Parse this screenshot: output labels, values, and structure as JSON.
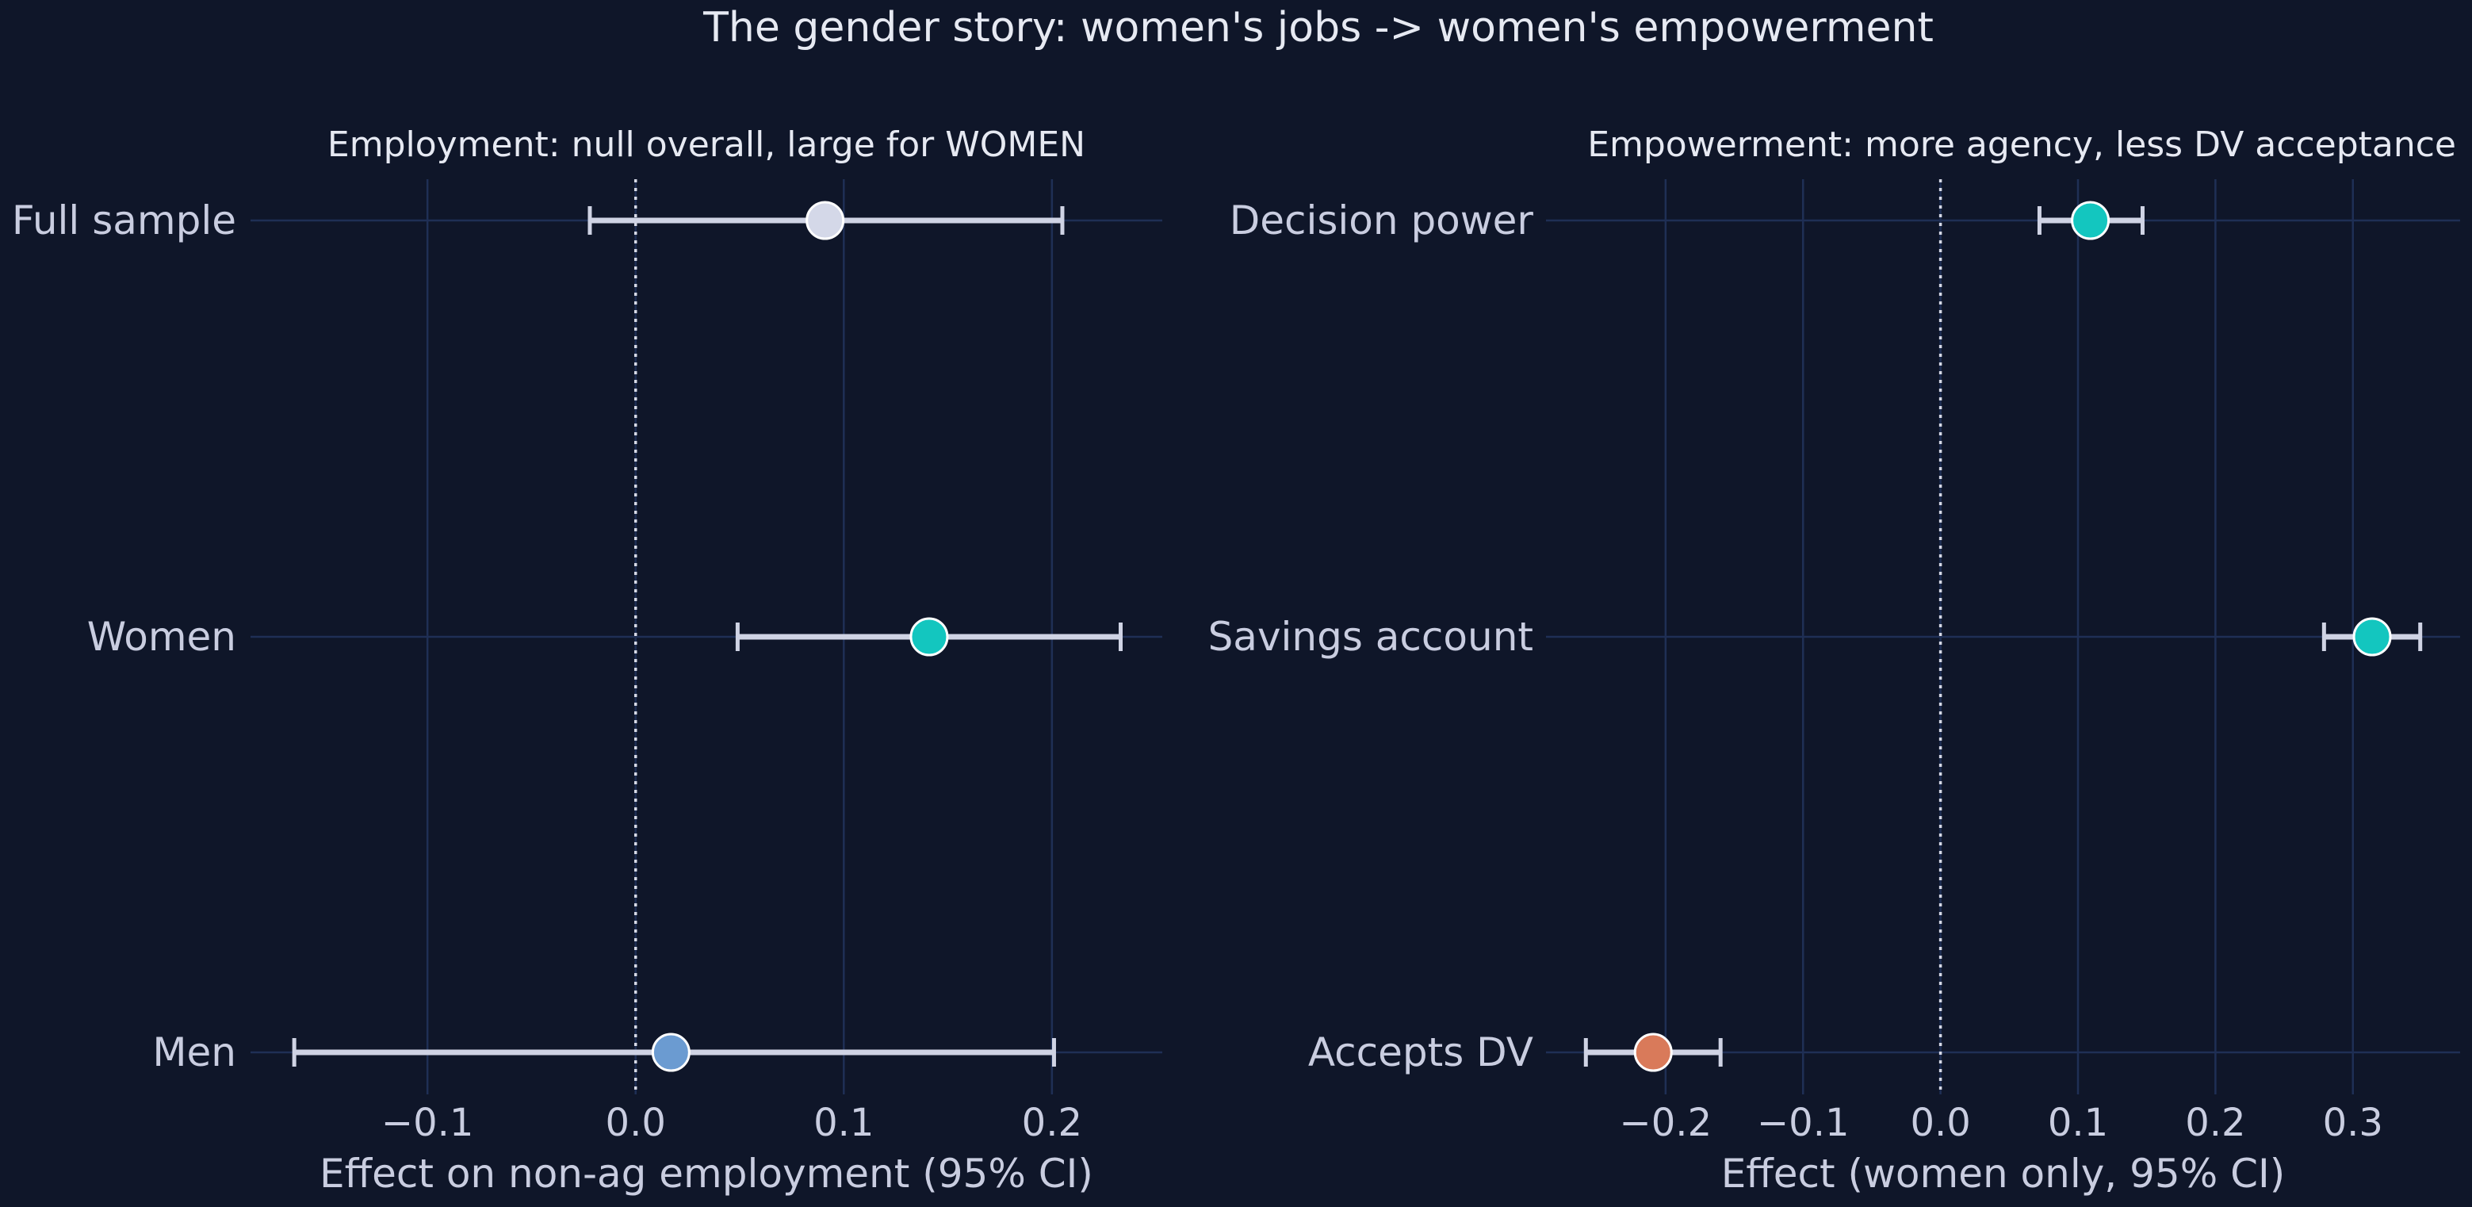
{
  "figure": {
    "title": "The gender story: women's jobs -> women's empowerment"
  },
  "chart_data": [
    {
      "type": "forest",
      "title": "Employment: null overall, large for WOMEN",
      "xlabel": "Effect on non-ag employment (95% CI)",
      "xlim": [
        -0.185,
        0.253
      ],
      "xticks": [
        -0.1,
        0.0,
        0.1,
        0.2
      ],
      "xtick_labels": [
        "−0.1",
        "0.0",
        "0.1",
        "0.2"
      ],
      "grid": true,
      "reference_line": 0,
      "rows": [
        {
          "label": "Full sample",
          "estimate": 0.091,
          "ci": [
            -0.022,
            0.205
          ],
          "color": "#d4d8e8"
        },
        {
          "label": "Women",
          "estimate": 0.141,
          "ci": [
            0.049,
            0.233
          ],
          "color": "#13c6bf"
        },
        {
          "label": "Men",
          "estimate": 0.017,
          "ci": [
            -0.164,
            0.201
          ],
          "color": "#6b9bd1"
        }
      ]
    },
    {
      "type": "forest",
      "title": "Empowerment: more agency, less DV acceptance",
      "xlabel": "Effect (women only, 95% CI)",
      "xlim": [
        -0.287,
        0.378
      ],
      "xticks": [
        -0.2,
        -0.1,
        0.0,
        0.1,
        0.2,
        0.3
      ],
      "xtick_labels": [
        "−0.2",
        "−0.1",
        "0.0",
        "0.1",
        "0.2",
        "0.3"
      ],
      "grid": true,
      "reference_line": 0,
      "rows": [
        {
          "label": "Decision power",
          "estimate": 0.109,
          "ci": [
            0.072,
            0.147
          ],
          "color": "#13c6bf"
        },
        {
          "label": "Savings account",
          "estimate": 0.314,
          "ci": [
            0.279,
            0.349
          ],
          "color": "#13c6bf"
        },
        {
          "label": "Accepts DV",
          "estimate": -0.209,
          "ci": [
            -0.258,
            -0.16
          ],
          "color": "#d97a5a"
        }
      ]
    }
  ]
}
